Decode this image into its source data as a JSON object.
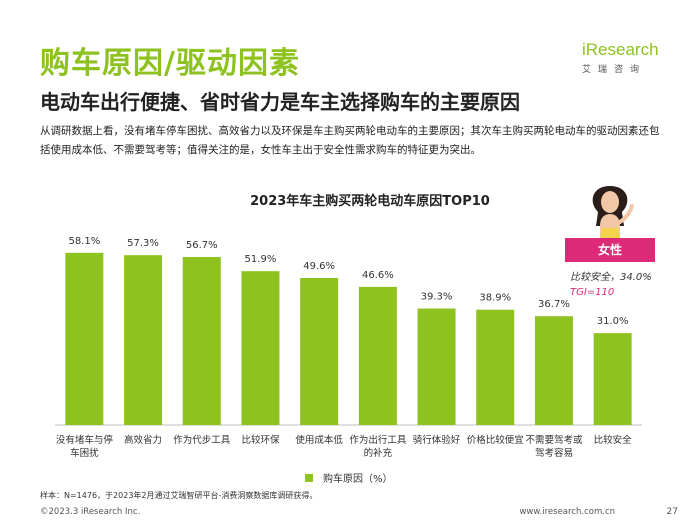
{
  "header": {
    "title": "购车原因/驱动因素",
    "subtitle": "电动车出行便捷、省时省力是车主选择购车的主要原因",
    "description": "从调研数据上看，没有堵车停车困扰、高效省力以及环保是车主购买两轮电动车的主要原因；其次车主购买两轮电动车的驱动因素还包括使用成本低、不需要驾考等；值得关注的是，女性车主出于安全性需求购车的特征更为突出。"
  },
  "logo": {
    "mark": "iResearch",
    "sub": "艾瑞咨询"
  },
  "female_callout": {
    "label": "女性",
    "note1": "比较安全，34.0%",
    "note2": "TGI=110"
  },
  "legend": {
    "label": "购车原因（%）"
  },
  "footer": {
    "source": "样本：N=1476，于2023年2月通过艾瑞智研平台-消费洞察数据库调研获得。",
    "copyright": "©2023.3 iResearch Inc.",
    "website": "www.iresearch.com.cn",
    "page": "27"
  },
  "colors": {
    "accent": "#8dc21f",
    "female": "#dd2a78"
  },
  "chart_data": {
    "type": "bar",
    "title": "2023年车主购买两轮电动车原因TOP10",
    "categories": [
      [
        "没有堵车与停",
        "车困扰"
      ],
      [
        "高效省力"
      ],
      [
        "作为代步工具"
      ],
      [
        "比较环保"
      ],
      [
        "使用成本低"
      ],
      [
        "作为出行工具",
        "的补充"
      ],
      [
        "骑行体验好"
      ],
      [
        "价格比较便宜"
      ],
      [
        "不需要驾考或",
        "驾考容易"
      ],
      [
        "比较安全"
      ]
    ],
    "series": [
      {
        "name": "购车原因（%）",
        "values": [
          58.1,
          57.3,
          56.7,
          51.9,
          49.6,
          46.6,
          39.3,
          38.9,
          36.7,
          31.0
        ]
      }
    ],
    "value_labels": [
      "58.1%",
      "57.3%",
      "56.7%",
      "51.9%",
      "49.6%",
      "46.6%",
      "39.3%",
      "38.9%",
      "36.7%",
      "31.0%"
    ],
    "ylim": [
      0,
      65
    ],
    "grid": false,
    "legend_position": "bottom"
  }
}
